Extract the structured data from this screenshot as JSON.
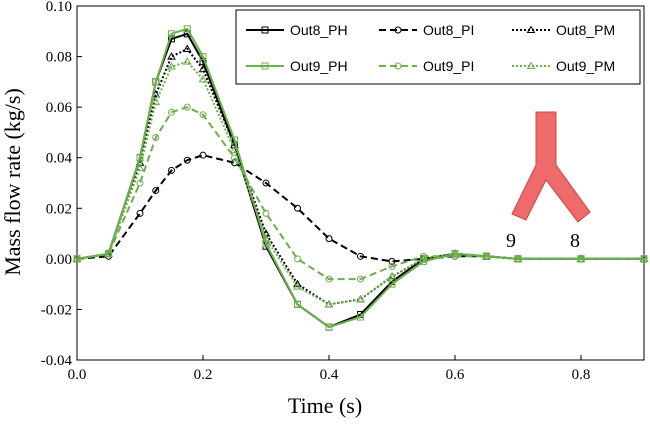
{
  "chart_data": {
    "type": "line",
    "xlabel": "Time (s)",
    "ylabel": "Mass flow rate (kg/s)",
    "annotations": [
      "9",
      "8"
    ],
    "x": [
      0,
      0.05,
      0.1,
      0.125,
      0.15,
      0.175,
      0.2,
      0.25,
      0.3,
      0.35,
      0.4,
      0.45,
      0.5,
      0.55,
      0.6,
      0.65,
      0.7,
      0.8,
      0.9
    ],
    "xlim": [
      0,
      0.9
    ],
    "ylim": [
      -0.04,
      0.1
    ],
    "xticks": [
      {
        "value": 0,
        "label": "0.0"
      },
      {
        "value": 0.2,
        "label": "0.2"
      },
      {
        "value": 0.4,
        "label": "0.4"
      },
      {
        "value": 0.6,
        "label": "0.6"
      },
      {
        "value": 0.8,
        "label": "0.8"
      }
    ],
    "yticks": [
      {
        "value": -0.04,
        "label": "-0.04"
      },
      {
        "value": -0.02,
        "label": "-0.02"
      },
      {
        "value": 0,
        "label": "0.00"
      },
      {
        "value": 0.02,
        "label": "0.02"
      },
      {
        "value": 0.04,
        "label": "0.04"
      },
      {
        "value": 0.06,
        "label": "0.06"
      },
      {
        "value": 0.08,
        "label": "0.08"
      },
      {
        "value": 0.1,
        "label": "0.10"
      }
    ],
    "series": [
      {
        "name": "Out8_PH",
        "color": "#000000",
        "dash": "solid",
        "marker": "square",
        "values": [
          0,
          0.002,
          0.04,
          0.07,
          0.087,
          0.089,
          0.078,
          0.045,
          0.005,
          -0.018,
          -0.027,
          -0.022,
          -0.009,
          0,
          0.002,
          0.001,
          0,
          0,
          0
        ]
      },
      {
        "name": "Out8_PI",
        "color": "#000000",
        "dash": "dashed",
        "marker": "circle",
        "values": [
          0,
          0.001,
          0.018,
          0.027,
          0.035,
          0.039,
          0.041,
          0.038,
          0.03,
          0.02,
          0.008,
          0.001,
          -0.001,
          0,
          0.001,
          0.001,
          0,
          0,
          0
        ]
      },
      {
        "name": "Out8_PM",
        "color": "#000000",
        "dash": "dotted",
        "marker": "triangle",
        "values": [
          0,
          0.002,
          0.038,
          0.065,
          0.08,
          0.083,
          0.075,
          0.045,
          0.01,
          -0.01,
          -0.018,
          -0.016,
          -0.007,
          0,
          0.002,
          0.001,
          0,
          0,
          0
        ]
      },
      {
        "name": "Out9_PH",
        "color": "#6ab04c",
        "dash": "solid",
        "marker": "square",
        "values": [
          0,
          0.002,
          0.04,
          0.07,
          0.089,
          0.091,
          0.08,
          0.047,
          0.006,
          -0.018,
          -0.027,
          -0.023,
          -0.01,
          -0.001,
          0.002,
          0.001,
          0,
          0,
          0
        ]
      },
      {
        "name": "Out9_PI",
        "color": "#6ab04c",
        "dash": "dashed",
        "marker": "circle",
        "values": [
          0,
          0.002,
          0.03,
          0.048,
          0.058,
          0.06,
          0.057,
          0.04,
          0.018,
          0,
          -0.008,
          -0.008,
          -0.003,
          0.001,
          0.001,
          0.001,
          0,
          0,
          0
        ]
      },
      {
        "name": "Out9_PM",
        "color": "#6ab04c",
        "dash": "dotted",
        "marker": "triangle",
        "values": [
          0,
          0.002,
          0.036,
          0.062,
          0.076,
          0.078,
          0.071,
          0.043,
          0.008,
          -0.011,
          -0.018,
          -0.016,
          -0.007,
          0,
          0.002,
          0.001,
          0,
          0,
          0
        ]
      }
    ]
  }
}
